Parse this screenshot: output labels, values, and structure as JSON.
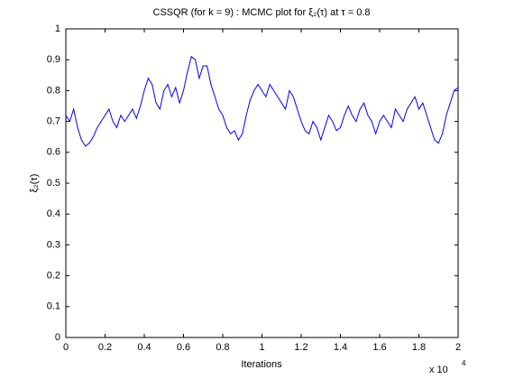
{
  "chart_data": {
    "type": "line",
    "title": "CSSQR (for k = 9) : MCMC plot for ξ₂(τ) at τ = 0.8",
    "x_label": "Iterations",
    "y_label": "ξ₂(τ)",
    "x_multiplier": "x 10",
    "x_multiplier_exponent": "4",
    "xlim": [
      0,
      2
    ],
    "xticks": [
      0,
      0.2,
      0.4,
      0.6,
      0.8,
      1,
      1.2,
      1.4,
      1.6,
      1.8,
      2
    ],
    "ylim": [
      0,
      1
    ],
    "yticks": [
      0,
      0.1,
      0.2,
      0.3,
      0.4,
      0.5,
      0.6,
      0.7,
      0.8,
      0.9,
      1
    ],
    "grid": false,
    "x": [
      0,
      0.02,
      0.04,
      0.06,
      0.08,
      0.1,
      0.12,
      0.14,
      0.16,
      0.18,
      0.2,
      0.22,
      0.24,
      0.26,
      0.28,
      0.3,
      0.32,
      0.34,
      0.36,
      0.38,
      0.4,
      0.42,
      0.44,
      0.46,
      0.48,
      0.5,
      0.52,
      0.54,
      0.56,
      0.58,
      0.6,
      0.62,
      0.64,
      0.66,
      0.68,
      0.7,
      0.72,
      0.74,
      0.76,
      0.78,
      0.8,
      0.82,
      0.84,
      0.86,
      0.88,
      0.9,
      0.92,
      0.94,
      0.96,
      0.98,
      1,
      1.02,
      1.04,
      1.06,
      1.08,
      1.1,
      1.12,
      1.14,
      1.16,
      1.18,
      1.2,
      1.22,
      1.24,
      1.26,
      1.28,
      1.3,
      1.32,
      1.34,
      1.36,
      1.38,
      1.4,
      1.42,
      1.44,
      1.46,
      1.48,
      1.5,
      1.52,
      1.54,
      1.56,
      1.58,
      1.6,
      1.62,
      1.64,
      1.66,
      1.68,
      1.7,
      1.72,
      1.74,
      1.76,
      1.78,
      1.8,
      1.82,
      1.84,
      1.86,
      1.88,
      1.9,
      1.92,
      1.94,
      1.96,
      1.98,
      2
    ],
    "series": [
      {
        "color": "#0000ff",
        "values": [
          0.72,
          0.7,
          0.74,
          0.68,
          0.64,
          0.62,
          0.63,
          0.65,
          0.68,
          0.7,
          0.72,
          0.74,
          0.7,
          0.68,
          0.72,
          0.7,
          0.72,
          0.74,
          0.71,
          0.75,
          0.8,
          0.84,
          0.82,
          0.76,
          0.74,
          0.8,
          0.82,
          0.78,
          0.81,
          0.76,
          0.8,
          0.86,
          0.91,
          0.9,
          0.84,
          0.88,
          0.88,
          0.82,
          0.78,
          0.74,
          0.72,
          0.68,
          0.66,
          0.67,
          0.64,
          0.66,
          0.72,
          0.77,
          0.8,
          0.82,
          0.8,
          0.78,
          0.82,
          0.8,
          0.78,
          0.76,
          0.74,
          0.8,
          0.78,
          0.74,
          0.7,
          0.67,
          0.66,
          0.7,
          0.68,
          0.64,
          0.68,
          0.72,
          0.7,
          0.67,
          0.68,
          0.72,
          0.75,
          0.72,
          0.7,
          0.74,
          0.76,
          0.72,
          0.7,
          0.66,
          0.7,
          0.72,
          0.7,
          0.68,
          0.74,
          0.72,
          0.7,
          0.74,
          0.76,
          0.78,
          0.74,
          0.76,
          0.72,
          0.68,
          0.64,
          0.63,
          0.66,
          0.72,
          0.76,
          0.8,
          0.81
        ]
      }
    ]
  }
}
